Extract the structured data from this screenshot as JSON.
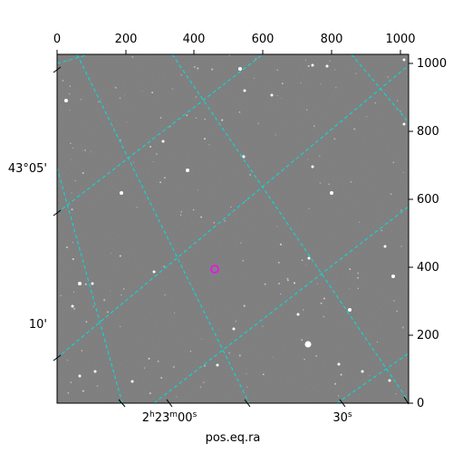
{
  "image_frame": {
    "pixel_x_ticks": [
      "0",
      "200",
      "400",
      "600",
      "800",
      "1000"
    ],
    "pixel_y_ticks": [
      "0",
      "200",
      "400",
      "600",
      "800",
      "1000"
    ],
    "dec_ticks": [
      "43°05'",
      "10'"
    ],
    "ra_ticks": [
      "2h23m00s",
      "30s"
    ],
    "ra_axis_label": "pos.eq.ra"
  },
  "colors": {
    "background": "#7b7b7b",
    "grid": "#00e0e0",
    "target_marker": "#ff00ff",
    "axes": "#000000"
  }
}
